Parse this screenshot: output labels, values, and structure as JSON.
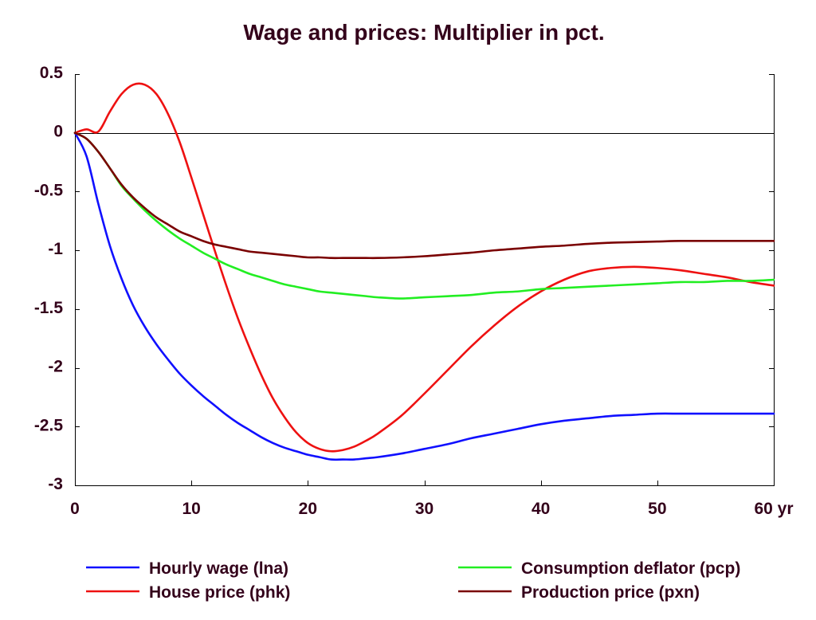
{
  "colors": {
    "text": "#33001a",
    "axis": "#000000",
    "background": "#ffffff"
  },
  "chart_data": {
    "type": "line",
    "title": "Wage and prices: Multiplier in pct.",
    "xlabel": "",
    "ylabel": "",
    "xlim": [
      0,
      60
    ],
    "ylim": [
      -3,
      0.5
    ],
    "x_ticks": [
      0,
      10,
      20,
      30,
      40,
      50,
      60
    ],
    "x_tick_labels": [
      "0",
      "10",
      "20",
      "30",
      "40",
      "50",
      "60 yr"
    ],
    "y_ticks": [
      0.5,
      0,
      -0.5,
      -1,
      -1.5,
      -2,
      -2.5,
      -3
    ],
    "y_tick_labels": [
      "0.5",
      "0",
      "-0.5",
      "-1",
      "-1.5",
      "-2",
      "-2.5",
      "-3"
    ],
    "grid": false,
    "zero_line": true,
    "legend_position": "bottom",
    "x": [
      0,
      1,
      2,
      3,
      4,
      5,
      6,
      7,
      8,
      9,
      10,
      11,
      12,
      13,
      14,
      15,
      16,
      17,
      18,
      19,
      20,
      21,
      22,
      23,
      24,
      25,
      26,
      28,
      30,
      32,
      34,
      36,
      38,
      40,
      42,
      44,
      46,
      48,
      50,
      52,
      54,
      56,
      58,
      60
    ],
    "series": [
      {
        "name": "Hourly wage (lna)",
        "color": "#1010ff",
        "values": [
          0,
          -0.2,
          -0.6,
          -0.96,
          -1.24,
          -1.47,
          -1.65,
          -1.8,
          -1.93,
          -2.05,
          -2.15,
          -2.24,
          -2.32,
          -2.4,
          -2.47,
          -2.53,
          -2.59,
          -2.64,
          -2.68,
          -2.71,
          -2.74,
          -2.76,
          -2.78,
          -2.78,
          -2.78,
          -2.77,
          -2.76,
          -2.73,
          -2.69,
          -2.65,
          -2.6,
          -2.56,
          -2.52,
          -2.48,
          -2.45,
          -2.43,
          -2.41,
          -2.4,
          -2.39,
          -2.39,
          -2.39,
          -2.39,
          -2.39,
          -2.39
        ]
      },
      {
        "name": "House price (phk)",
        "color": "#ee1111",
        "values": [
          0,
          0.03,
          0.01,
          0.18,
          0.33,
          0.41,
          0.41,
          0.33,
          0.16,
          -0.08,
          -0.38,
          -0.69,
          -1.0,
          -1.3,
          -1.58,
          -1.83,
          -2.06,
          -2.26,
          -2.42,
          -2.55,
          -2.64,
          -2.69,
          -2.71,
          -2.7,
          -2.67,
          -2.62,
          -2.56,
          -2.41,
          -2.22,
          -2.02,
          -1.82,
          -1.64,
          -1.48,
          -1.35,
          -1.25,
          -1.18,
          -1.15,
          -1.14,
          -1.15,
          -1.17,
          -1.2,
          -1.23,
          -1.27,
          -1.3
        ]
      },
      {
        "name": "Consumption deflator (pcp)",
        "color": "#22ee22",
        "values": [
          0,
          -0.05,
          -0.16,
          -0.3,
          -0.45,
          -0.56,
          -0.66,
          -0.75,
          -0.83,
          -0.9,
          -0.96,
          -1.02,
          -1.07,
          -1.12,
          -1.16,
          -1.2,
          -1.23,
          -1.26,
          -1.29,
          -1.31,
          -1.33,
          -1.35,
          -1.36,
          -1.37,
          -1.38,
          -1.39,
          -1.4,
          -1.41,
          -1.4,
          -1.39,
          -1.38,
          -1.36,
          -1.35,
          -1.33,
          -1.32,
          -1.31,
          -1.3,
          -1.29,
          -1.28,
          -1.27,
          -1.27,
          -1.26,
          -1.26,
          -1.25
        ]
      },
      {
        "name": "Production price (pxn)",
        "color": "#7a0000",
        "values": [
          0,
          -0.05,
          -0.16,
          -0.3,
          -0.44,
          -0.55,
          -0.64,
          -0.72,
          -0.78,
          -0.84,
          -0.88,
          -0.92,
          -0.95,
          -0.97,
          -0.99,
          -1.01,
          -1.02,
          -1.03,
          -1.04,
          -1.05,
          -1.06,
          -1.06,
          -1.065,
          -1.065,
          -1.065,
          -1.065,
          -1.065,
          -1.06,
          -1.05,
          -1.035,
          -1.02,
          -1.0,
          -0.985,
          -0.97,
          -0.96,
          -0.945,
          -0.935,
          -0.93,
          -0.925,
          -0.92,
          -0.92,
          -0.92,
          -0.92,
          -0.92
        ]
      }
    ]
  }
}
